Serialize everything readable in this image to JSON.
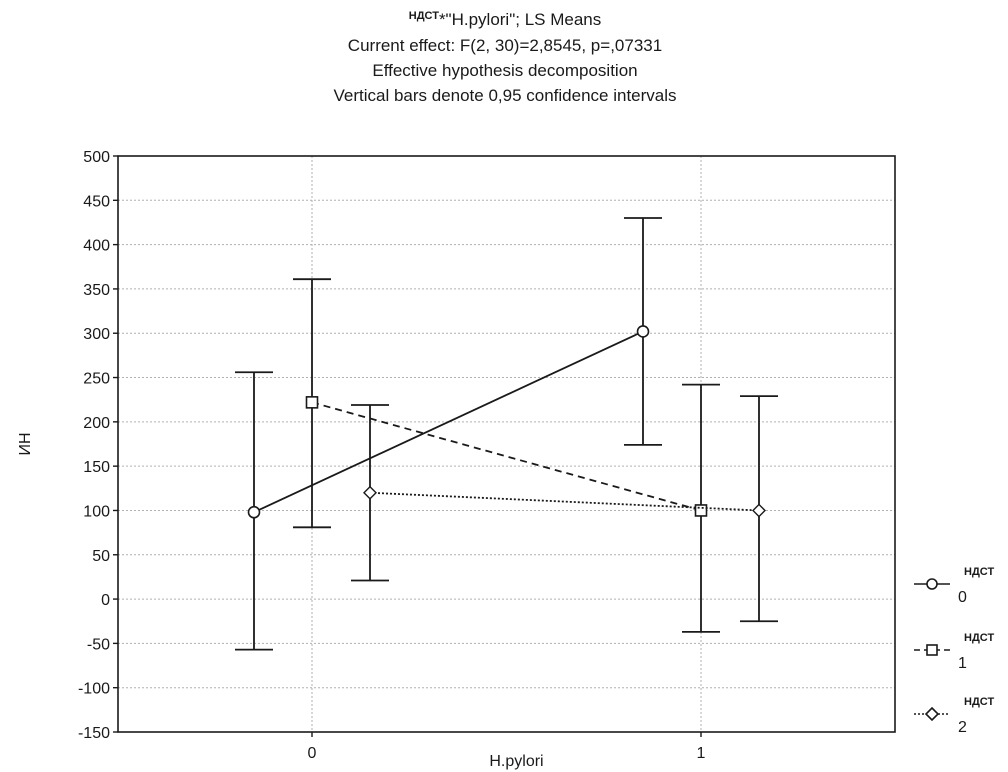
{
  "chart_data": {
    "type": "line",
    "title_prefix": "НДСТ",
    "title_rest": "*\"H.pylori\"; LS Means",
    "subtitle_lines": [
      "Current effect: F(2, 30)=2,8545, p=,07331",
      "Effective hypothesis decomposition",
      "Vertical bars denote 0,95 confidence intervals"
    ],
    "xlabel": "H.pylori",
    "ylabel": "ИН",
    "categories": [
      "0",
      "1"
    ],
    "ylim": [
      -150,
      500
    ],
    "yticks": [
      500,
      450,
      400,
      350,
      300,
      250,
      200,
      150,
      100,
      50,
      0,
      -50,
      -100,
      -150
    ],
    "grid": true,
    "legend_position": "right",
    "series": [
      {
        "name": "НДСТ",
        "level": "0",
        "marker": "circle",
        "line": "solid",
        "values": [
          98,
          302
        ],
        "ci_low": [
          -57,
          174
        ],
        "ci_high": [
          256,
          430
        ]
      },
      {
        "name": "НДСТ",
        "level": "1",
        "marker": "square",
        "line": "dashed",
        "values": [
          222,
          100
        ],
        "ci_low": [
          81,
          -37
        ],
        "ci_high": [
          361,
          242
        ]
      },
      {
        "name": "НДСТ",
        "level": "2",
        "marker": "diamond",
        "line": "dotted",
        "values": [
          120,
          100
        ],
        "ci_low": [
          21,
          -25
        ],
        "ci_high": [
          219,
          229
        ]
      }
    ],
    "colors": {
      "line": "#1a1a1a",
      "grid": "#b0b0b0",
      "background": "#ffffff"
    }
  }
}
